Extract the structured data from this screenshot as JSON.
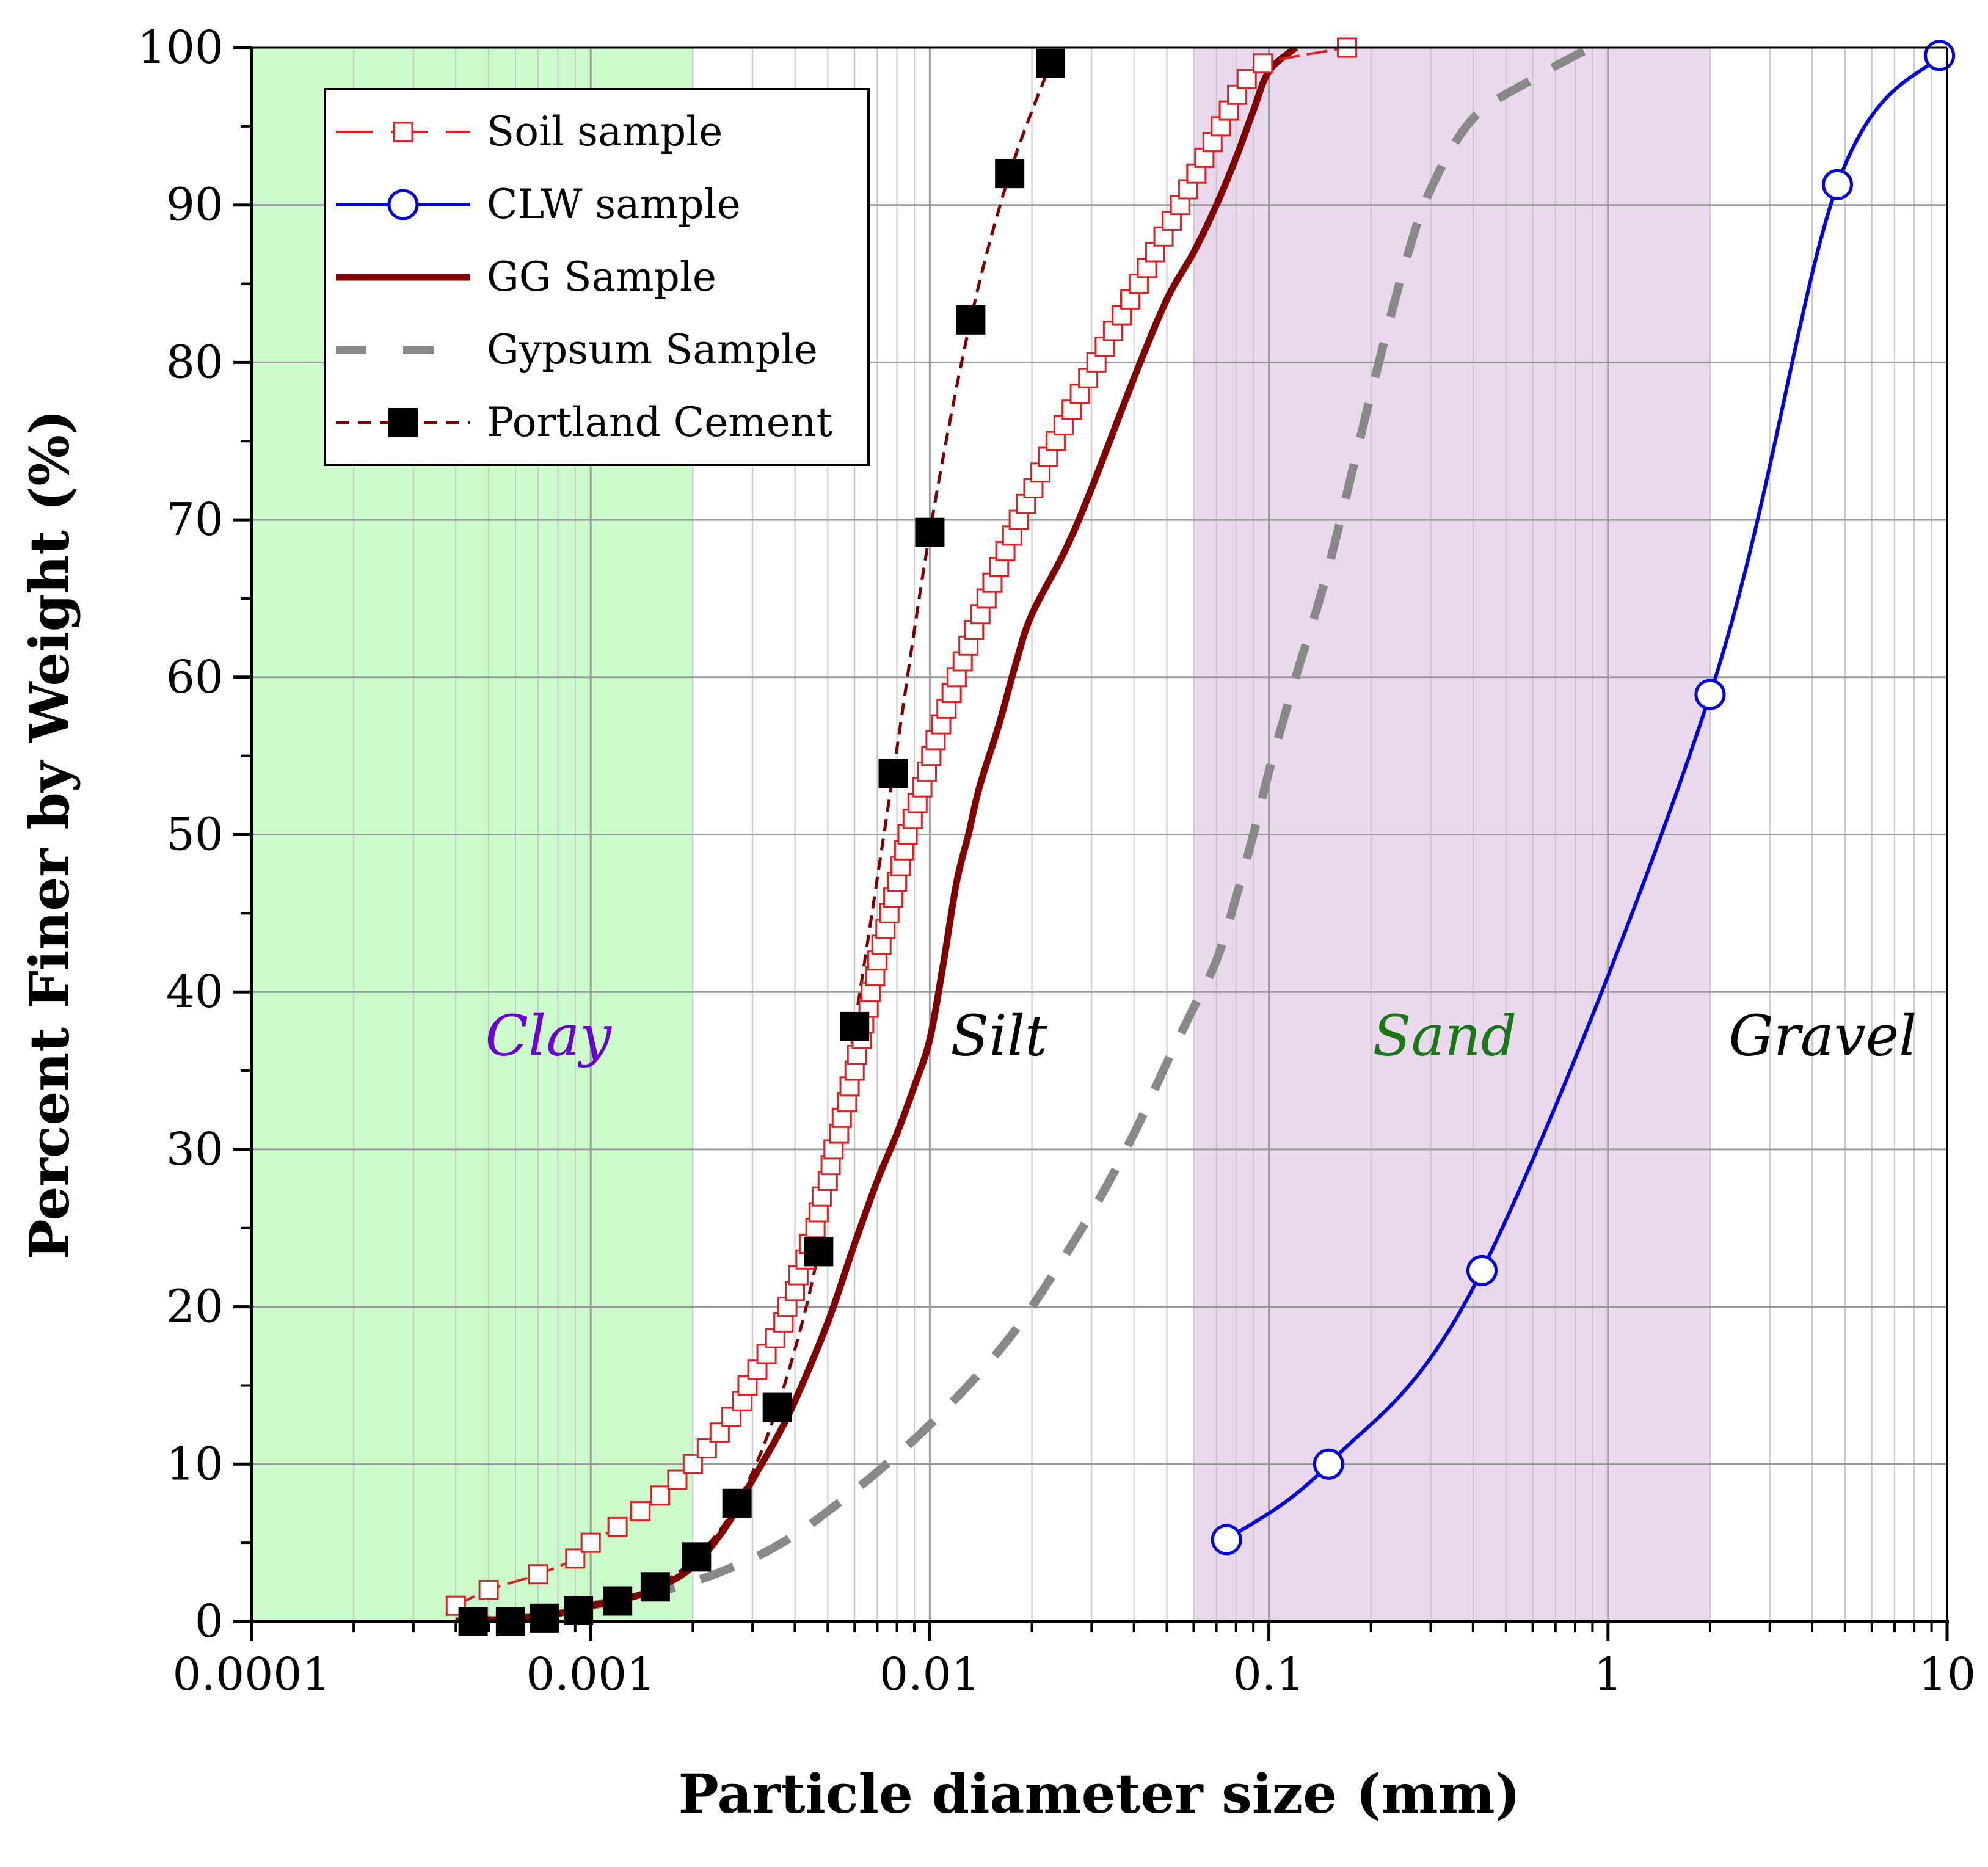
{
  "chart_data": {
    "type": "line",
    "xscale": "log",
    "xlim": [
      0.0001,
      10
    ],
    "ylim": [
      0,
      100
    ],
    "xlabel": "Particle diameter size (mm)",
    "ylabel": "Percent Finer by Weight (%)",
    "x_ticks": [
      {
        "value": 0.0001,
        "label": "0.0001"
      },
      {
        "value": 0.001,
        "label": "0.001"
      },
      {
        "value": 0.01,
        "label": "0.01"
      },
      {
        "value": 0.1,
        "label": "0.1"
      },
      {
        "value": 1,
        "label": "1"
      },
      {
        "value": 10,
        "label": "10"
      }
    ],
    "y_ticks": [
      {
        "value": 0,
        "label": "0"
      },
      {
        "value": 10,
        "label": "10"
      },
      {
        "value": 20,
        "label": "20"
      },
      {
        "value": 30,
        "label": "30"
      },
      {
        "value": 40,
        "label": "40"
      },
      {
        "value": 50,
        "label": "50"
      },
      {
        "value": 60,
        "label": "60"
      },
      {
        "value": 70,
        "label": "70"
      },
      {
        "value": 80,
        "label": "80"
      },
      {
        "value": 90,
        "label": "90"
      },
      {
        "value": 100,
        "label": "100"
      }
    ],
    "grid": true,
    "legend_position": "top-left",
    "regions": [
      {
        "label": "Clay",
        "x_from": 0.0001,
        "x_to": 0.002,
        "fill": "#ccfccc",
        "text_color": "#6a00d8",
        "label_x": 0.00075,
        "label_y": 36
      },
      {
        "label": "Silt",
        "x_from": 0.002,
        "x_to": 0.06,
        "fill": "#ffffff",
        "text_color": "#000000",
        "label_x": 0.016,
        "label_y": 36
      },
      {
        "label": "Sand",
        "x_from": 0.06,
        "x_to": 2,
        "fill": "#ead8ec",
        "text_color": "#187818",
        "label_x": 0.33,
        "label_y": 36
      },
      {
        "label": "Gravel",
        "x_from": 2,
        "x_to": 10,
        "fill": "#ffffff",
        "text_color": "#000000",
        "label_x": 4.3,
        "label_y": 36
      }
    ],
    "series": [
      {
        "name": "Soil sample",
        "color": "#e02020",
        "line": "dashed-long",
        "marker": "open-square",
        "points": [
          [
            0.0004,
            1
          ],
          [
            0.0005,
            2
          ],
          [
            0.0007,
            3
          ],
          [
            0.0009,
            4
          ],
          [
            0.001,
            5
          ],
          [
            0.0012,
            6
          ],
          [
            0.0014,
            7
          ],
          [
            0.0016,
            8
          ],
          [
            0.0018,
            9
          ],
          [
            0.002,
            10
          ],
          [
            0.0022,
            11
          ],
          [
            0.0024,
            12
          ],
          [
            0.0026,
            13
          ],
          [
            0.0028,
            14
          ],
          [
            0.0029,
            15
          ],
          [
            0.0031,
            16
          ],
          [
            0.0033,
            17
          ],
          [
            0.0035,
            18
          ],
          [
            0.0037,
            19
          ],
          [
            0.0038,
            20
          ],
          [
            0.004,
            21
          ],
          [
            0.0041,
            22
          ],
          [
            0.0043,
            23
          ],
          [
            0.0044,
            24
          ],
          [
            0.0046,
            25
          ],
          [
            0.0047,
            26
          ],
          [
            0.0048,
            27
          ],
          [
            0.005,
            28
          ],
          [
            0.0051,
            29
          ],
          [
            0.0052,
            30
          ],
          [
            0.0054,
            31
          ],
          [
            0.0055,
            32
          ],
          [
            0.0057,
            33
          ],
          [
            0.0058,
            34
          ],
          [
            0.006,
            35
          ],
          [
            0.0061,
            36
          ],
          [
            0.0063,
            37
          ],
          [
            0.0064,
            38
          ],
          [
            0.0066,
            39
          ],
          [
            0.0067,
            40
          ],
          [
            0.0069,
            41
          ],
          [
            0.007,
            42
          ],
          [
            0.0072,
            43
          ],
          [
            0.0074,
            44
          ],
          [
            0.0076,
            45
          ],
          [
            0.0078,
            46
          ],
          [
            0.008,
            47
          ],
          [
            0.0082,
            48
          ],
          [
            0.0084,
            49
          ],
          [
            0.0086,
            50
          ],
          [
            0.0089,
            51
          ],
          [
            0.0092,
            52
          ],
          [
            0.0095,
            53
          ],
          [
            0.0098,
            54
          ],
          [
            0.0101,
            55
          ],
          [
            0.0104,
            56
          ],
          [
            0.0108,
            57
          ],
          [
            0.0112,
            58
          ],
          [
            0.0116,
            59
          ],
          [
            0.012,
            60
          ],
          [
            0.0125,
            61
          ],
          [
            0.013,
            62
          ],
          [
            0.0135,
            63
          ],
          [
            0.0141,
            64
          ],
          [
            0.0147,
            65
          ],
          [
            0.0153,
            66
          ],
          [
            0.016,
            67
          ],
          [
            0.0167,
            68
          ],
          [
            0.0175,
            69
          ],
          [
            0.0183,
            70
          ],
          [
            0.0192,
            71
          ],
          [
            0.0202,
            72
          ],
          [
            0.0212,
            73
          ],
          [
            0.0223,
            74
          ],
          [
            0.0235,
            75
          ],
          [
            0.0248,
            76
          ],
          [
            0.0262,
            77
          ],
          [
            0.0277,
            78
          ],
          [
            0.0293,
            79
          ],
          [
            0.031,
            80
          ],
          [
            0.0328,
            81
          ],
          [
            0.0347,
            82
          ],
          [
            0.0368,
            83
          ],
          [
            0.039,
            84
          ],
          [
            0.0413,
            85
          ],
          [
            0.0437,
            86
          ],
          [
            0.0462,
            87
          ],
          [
            0.0489,
            88
          ],
          [
            0.0517,
            89
          ],
          [
            0.0547,
            90
          ],
          [
            0.0578,
            91
          ],
          [
            0.0611,
            92
          ],
          [
            0.0645,
            93
          ],
          [
            0.0682,
            94
          ],
          [
            0.0721,
            95
          ],
          [
            0.0762,
            96
          ],
          [
            0.0806,
            97
          ],
          [
            0.086,
            98
          ],
          [
            0.096,
            99
          ],
          [
            0.17,
            100
          ]
        ]
      },
      {
        "name": "CLW sample",
        "color": "#0000e0",
        "line": "solid",
        "marker": "open-circle",
        "points": [
          [
            0.075,
            5.2
          ],
          [
            0.15,
            10
          ],
          [
            0.425,
            22.3
          ],
          [
            2,
            58.9
          ],
          [
            4.75,
            91.3
          ],
          [
            9.5,
            99.5
          ]
        ]
      },
      {
        "name": "GG Sample",
        "color": "#800000",
        "line": "solid-thick",
        "marker": "none",
        "points": [
          [
            0.0004,
            0
          ],
          [
            0.0006,
            0.2
          ],
          [
            0.0008,
            0.5
          ],
          [
            0.001,
            1
          ],
          [
            0.0013,
            1.5
          ],
          [
            0.0016,
            2.2
          ],
          [
            0.002,
            3.5
          ],
          [
            0.0025,
            6
          ],
          [
            0.003,
            9
          ],
          [
            0.0035,
            11.5
          ],
          [
            0.004,
            14
          ],
          [
            0.005,
            19
          ],
          [
            0.006,
            24
          ],
          [
            0.007,
            28
          ],
          [
            0.008,
            31
          ],
          [
            0.009,
            34
          ],
          [
            0.01,
            37
          ],
          [
            0.011,
            42
          ],
          [
            0.012,
            47
          ],
          [
            0.013,
            50
          ],
          [
            0.014,
            53
          ],
          [
            0.016,
            57
          ],
          [
            0.018,
            61
          ],
          [
            0.02,
            64
          ],
          [
            0.025,
            68
          ],
          [
            0.03,
            72
          ],
          [
            0.04,
            79
          ],
          [
            0.05,
            84
          ],
          [
            0.06,
            87
          ],
          [
            0.07,
            90
          ],
          [
            0.08,
            93
          ],
          [
            0.09,
            96
          ],
          [
            0.1,
            98.5
          ],
          [
            0.12,
            100
          ]
        ]
      },
      {
        "name": "Gypsum Sample",
        "color": "#888888",
        "line": "dashed-thick",
        "marker": "none",
        "points": [
          [
            0.0004,
            0
          ],
          [
            0.0006,
            0.2
          ],
          [
            0.0008,
            0.5
          ],
          [
            0.001,
            1
          ],
          [
            0.0015,
            1.8
          ],
          [
            0.002,
            2.5
          ],
          [
            0.003,
            4
          ],
          [
            0.004,
            5.5
          ],
          [
            0.005,
            7
          ],
          [
            0.007,
            9.5
          ],
          [
            0.01,
            12.5
          ],
          [
            0.015,
            16.5
          ],
          [
            0.02,
            20
          ],
          [
            0.03,
            26
          ],
          [
            0.04,
            31
          ],
          [
            0.05,
            35.5
          ],
          [
            0.06,
            39
          ],
          [
            0.07,
            42
          ],
          [
            0.08,
            46
          ],
          [
            0.09,
            50
          ],
          [
            0.1,
            54
          ],
          [
            0.12,
            60
          ],
          [
            0.15,
            67
          ],
          [
            0.2,
            78
          ],
          [
            0.25,
            86
          ],
          [
            0.3,
            91
          ],
          [
            0.4,
            95.5
          ],
          [
            0.6,
            98
          ],
          [
            0.8,
            99.5
          ],
          [
            0.9,
            100
          ]
        ]
      },
      {
        "name": "Portland Cement",
        "color": "#800000",
        "line": "dashed-short",
        "marker": "filled-square",
        "points": [
          [
            0.00045,
            0
          ],
          [
            0.00058,
            0
          ],
          [
            0.00073,
            0.2
          ],
          [
            0.00092,
            0.7
          ],
          [
            0.0012,
            1.3
          ],
          [
            0.00155,
            2.2
          ],
          [
            0.00205,
            4.1
          ],
          [
            0.0027,
            7.5
          ],
          [
            0.00355,
            13.6
          ],
          [
            0.0047,
            23.5
          ],
          [
            0.006,
            37.8
          ],
          [
            0.0078,
            53.9
          ],
          [
            0.01,
            69.2
          ],
          [
            0.0132,
            82.7
          ],
          [
            0.0172,
            92.0
          ],
          [
            0.0227,
            99.0
          ]
        ]
      }
    ]
  }
}
